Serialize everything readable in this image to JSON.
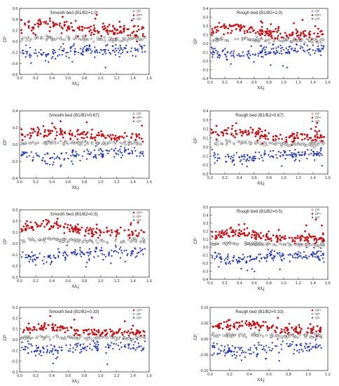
{
  "figure": {
    "colors": {
      "cp_mean": "#ffffff",
      "cp_plus": "#c0161b",
      "cp_minus": "#1c2fb0",
      "outline": "#222222"
    }
  },
  "chart_data": [
    {
      "type": "scatter",
      "id": "p1",
      "title": "Smooth bed (B1/B2=1.0)",
      "xlabel": "X/Lj",
      "ylabel": "CP",
      "xlim": [
        0.0,
        1.6
      ],
      "ylim": [
        -0.6,
        0.6
      ],
      "xticks": [
        "0.0",
        "0.2",
        "0.4",
        "0.6",
        "0.8",
        "1.0",
        "1.2",
        "1.4",
        "1.6"
      ],
      "yticks": [
        "0.6",
        "0.4",
        "0.2",
        "0.0",
        "-0.2",
        "-0.4",
        "-0.6"
      ],
      "legend": {
        "position": "top-right",
        "entries": [
          "CP",
          "CP+",
          "CP-"
        ]
      },
      "grid": false,
      "series": [
        {
          "name": "CP",
          "mean": 0.05,
          "spread": 0.04,
          "n": 110,
          "x_range": [
            0.02,
            1.55
          ]
        },
        {
          "name": "CP+",
          "mean": 0.25,
          "spread": 0.12,
          "n": 160,
          "x_range": [
            0.02,
            1.55
          ],
          "peak": 0.55
        },
        {
          "name": "CP-",
          "mean": -0.18,
          "spread": 0.1,
          "n": 160,
          "x_range": [
            0.02,
            1.55
          ],
          "low": -0.48
        }
      ]
    },
    {
      "type": "scatter",
      "id": "p2",
      "title": "Rough bed (B1/B2=1.0)",
      "xlabel": "X/Lj",
      "ylabel": "CP",
      "xlim": [
        0.0,
        1.6
      ],
      "ylim": [
        -0.4,
        0.4
      ],
      "xticks": [
        "0.0",
        "0.2",
        "0.4",
        "0.6",
        "0.8",
        "1.0",
        "1.2",
        "1.4",
        "1.6"
      ],
      "yticks": [
        "0.4",
        "0.3",
        "0.2",
        "0.1",
        "0.0",
        "-0.1",
        "-0.2",
        "-0.3",
        "-0.4"
      ],
      "legend": {
        "position": "top-right",
        "entries": [
          "CP",
          "CP+",
          "CP-"
        ]
      },
      "grid": false,
      "series": [
        {
          "name": "CP",
          "mean": 0.04,
          "spread": 0.025,
          "n": 110,
          "x_range": [
            0.02,
            1.55
          ]
        },
        {
          "name": "CP+",
          "mean": 0.14,
          "spread": 0.06,
          "n": 160,
          "x_range": [
            0.02,
            1.55
          ],
          "peak": 0.3
        },
        {
          "name": "CP-",
          "mean": -0.1,
          "spread": 0.06,
          "n": 160,
          "x_range": [
            0.02,
            1.55
          ],
          "low": -0.3
        }
      ]
    },
    {
      "type": "scatter",
      "id": "p3",
      "title": "Smooth bed (B1/B2=0.67)",
      "xlabel": "X/Lj",
      "ylabel": "CP",
      "xlim": [
        0.0,
        1.6
      ],
      "ylim": [
        -0.4,
        0.4
      ],
      "xticks": [
        "0.0",
        "0.2",
        "0.4",
        "0.6",
        "0.8",
        "1.0",
        "1.2",
        "1.4",
        "1.6"
      ],
      "yticks": [
        "0.4",
        "0.2",
        "0.0",
        "-0.2",
        "-0.4"
      ],
      "legend": {
        "position": "top-right",
        "entries": [
          "CP",
          "CP+",
          "CP-"
        ]
      },
      "grid": false,
      "series": [
        {
          "name": "CP",
          "mean": 0.02,
          "spread": 0.025,
          "n": 100,
          "x_range": [
            0.02,
            1.55
          ]
        },
        {
          "name": "CP+",
          "mean": 0.12,
          "spread": 0.07,
          "n": 140,
          "x_range": [
            0.02,
            1.55
          ],
          "peak": 0.3
        },
        {
          "name": "CP-",
          "mean": -0.12,
          "spread": 0.07,
          "n": 140,
          "x_range": [
            0.02,
            1.55
          ],
          "low": -0.3
        }
      ]
    },
    {
      "type": "scatter",
      "id": "p4",
      "title": "Rough bed (B1/B2=0.67)",
      "xlabel": "X/Lj",
      "ylabel": "CP",
      "xlim": [
        0.0,
        1.6
      ],
      "ylim": [
        -0.3,
        0.4
      ],
      "xticks": [
        "0.0",
        "0.2",
        "0.4",
        "0.6",
        "0.8",
        "1.0",
        "1.2",
        "1.4",
        "1.6"
      ],
      "yticks": [
        "0.4",
        "0.3",
        "0.2",
        "0.1",
        "0.0",
        "-0.1",
        "-0.2",
        "-0.3"
      ],
      "legend": {
        "position": "top-right",
        "entries": [
          "CP",
          "CP+",
          "CP-"
        ]
      },
      "grid": false,
      "series": [
        {
          "name": "CP",
          "mean": 0.04,
          "spread": 0.025,
          "n": 100,
          "x_range": [
            0.02,
            1.55
          ]
        },
        {
          "name": "CP+",
          "mean": 0.14,
          "spread": 0.06,
          "n": 150,
          "x_range": [
            0.02,
            1.55
          ],
          "peak": 0.35
        },
        {
          "name": "CP-",
          "mean": -0.1,
          "spread": 0.06,
          "n": 150,
          "x_range": [
            0.02,
            1.55
          ],
          "low": -0.25
        }
      ]
    },
    {
      "type": "scatter",
      "id": "p5",
      "title": "Smooth bed (B1/B2=0.5)",
      "xlabel": "X/Lj",
      "ylabel": "CP",
      "xlim": [
        0.0,
        1.6
      ],
      "ylim": [
        -0.3,
        0.3
      ],
      "xticks": [
        "0.0",
        "0.2",
        "0.4",
        "0.6",
        "0.8",
        "1.0",
        "1.2",
        "1.4",
        "1.6"
      ],
      "yticks": [
        "0.3",
        "0.2",
        "0.1",
        "0.0",
        "-0.1",
        "-0.2",
        "-0.3"
      ],
      "legend": {
        "position": "top-right",
        "entries": [
          "CP+",
          "CP",
          "CP-"
        ]
      },
      "grid": false,
      "series": [
        {
          "name": "CP",
          "mean": 0.03,
          "spread": 0.02,
          "n": 100,
          "x_range": [
            0.02,
            1.55
          ]
        },
        {
          "name": "CP+",
          "mean": 0.13,
          "spread": 0.04,
          "n": 150,
          "x_range": [
            0.02,
            1.55
          ],
          "peak": 0.22
        },
        {
          "name": "CP-",
          "mean": -0.1,
          "spread": 0.05,
          "n": 150,
          "x_range": [
            0.02,
            1.55
          ],
          "low": -0.22
        }
      ]
    },
    {
      "type": "scatter",
      "id": "p6",
      "title": "Rough bed (B1/B2=0.5)",
      "xlabel": "X/Lj",
      "ylabel": "CP",
      "xlim": [
        0.0,
        1.6
      ],
      "ylim": [
        -0.4,
        0.5
      ],
      "xticks": [
        "0.0",
        "0.2",
        "0.4",
        "0.6",
        "0.8",
        "1.0",
        "1.2",
        "1.4",
        "1.6"
      ],
      "yticks": [
        "0.5",
        "0.4",
        "0.3",
        "0.2",
        "0.1",
        "0.0",
        "-0.1",
        "-0.2",
        "-0.3",
        "-0.4"
      ],
      "legend": {
        "position": "top-right",
        "entries": [
          "CP",
          "CP+",
          "CP-"
        ]
      },
      "grid": false,
      "series": [
        {
          "name": "CP",
          "mean": 0.04,
          "spread": 0.02,
          "n": 110,
          "x_range": [
            0.02,
            1.55
          ]
        },
        {
          "name": "CP+",
          "mean": 0.14,
          "spread": 0.06,
          "n": 170,
          "x_range": [
            0.02,
            1.55
          ],
          "peak": 0.4
        },
        {
          "name": "CP-",
          "mean": -0.12,
          "spread": 0.06,
          "n": 170,
          "x_range": [
            0.02,
            1.55
          ],
          "low": -0.32
        }
      ]
    },
    {
      "type": "scatter",
      "id": "p7",
      "title": "Smooth bed (B1/B2=0.33)",
      "xlabel": "X/Lj",
      "ylabel": "CP",
      "xlim": [
        0.0,
        1.6
      ],
      "ylim": [
        -0.3,
        0.3
      ],
      "xticks": [
        "0.0",
        "0.2",
        "0.4",
        "0.6",
        "0.8",
        "1.0",
        "1.2",
        "1.4",
        "1.6"
      ],
      "yticks": [
        "0.3",
        "0.2",
        "0.1",
        "0.0",
        "-0.1",
        "-0.2",
        "-0.3"
      ],
      "legend": {
        "position": "top-right",
        "entries": [
          "CP+",
          "CP",
          "CP-"
        ]
      },
      "grid": false,
      "series": [
        {
          "name": "CP",
          "mean": 0.02,
          "spread": 0.015,
          "n": 100,
          "x_range": [
            0.02,
            1.55
          ]
        },
        {
          "name": "CP+",
          "mean": 0.09,
          "spread": 0.04,
          "n": 150,
          "x_range": [
            0.02,
            1.55
          ],
          "peak": 0.24
        },
        {
          "name": "CP-",
          "mean": -0.08,
          "spread": 0.05,
          "n": 150,
          "x_range": [
            0.02,
            1.55
          ],
          "low": -0.25
        }
      ]
    },
    {
      "type": "scatter",
      "id": "p8",
      "title": "Rough bed (B1/B2=0.33)",
      "xlabel": "X/Lj",
      "ylabel": "CP",
      "xlim": [
        0.0,
        1.2
      ],
      "ylim": [
        -0.1,
        0.1
      ],
      "xticks": [
        "0.0",
        "0.2",
        "0.4",
        "0.6",
        "0.8",
        "1.0",
        "1.2"
      ],
      "yticks": [
        "0.10",
        "0.05",
        "0.00",
        "-0.05",
        "-0.10"
      ],
      "legend": {
        "position": "top-right",
        "entries": [
          "CP+",
          "CP",
          "CP-"
        ]
      },
      "grid": false,
      "series": [
        {
          "name": "CP",
          "mean": 0.01,
          "spread": 0.007,
          "n": 100,
          "x_range": [
            0.02,
            1.15
          ]
        },
        {
          "name": "CP+",
          "mean": 0.035,
          "spread": 0.015,
          "n": 140,
          "x_range": [
            0.02,
            1.15
          ],
          "peak": 0.08
        },
        {
          "name": "CP-",
          "mean": -0.03,
          "spread": 0.02,
          "n": 140,
          "x_range": [
            0.02,
            1.15
          ],
          "low": -0.09
        }
      ]
    }
  ]
}
